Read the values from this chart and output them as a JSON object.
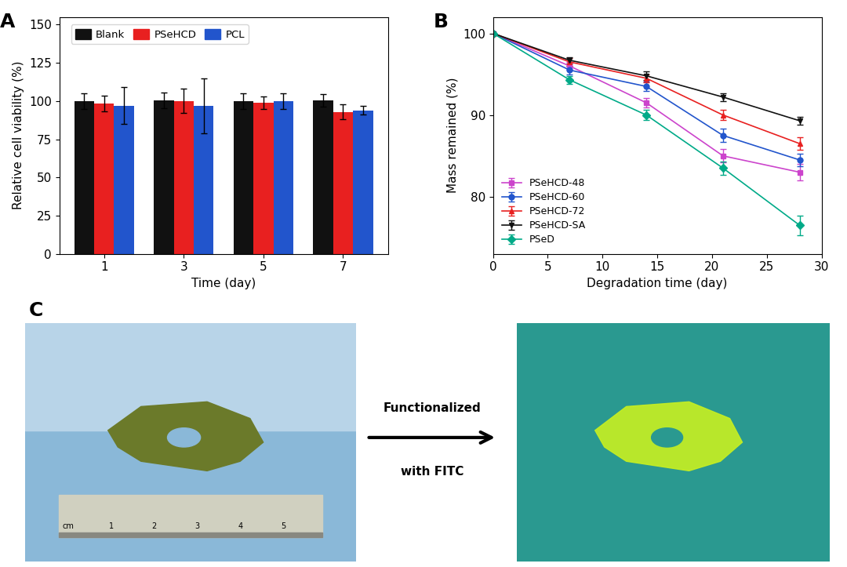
{
  "panel_A": {
    "label": "A",
    "time_days": [
      1,
      3,
      5,
      7
    ],
    "blank_mean": [
      100,
      100.5,
      100,
      100.3
    ],
    "blank_err": [
      5,
      5,
      5,
      4
    ],
    "PSeHCD_mean": [
      98.5,
      100,
      99,
      93
    ],
    "PSeHCD_err": [
      5,
      8,
      4,
      5
    ],
    "PCL_mean": [
      97,
      97,
      100,
      94
    ],
    "PCL_err": [
      12,
      18,
      5,
      3
    ],
    "colors": {
      "Blank": "#111111",
      "PSeHCD": "#e82020",
      "PCL": "#2255cc"
    },
    "ylabel": "Relative cell viability (%)",
    "xlabel": "Time (day)",
    "yticks": [
      0,
      25,
      50,
      75,
      100,
      125,
      150
    ],
    "ylim": [
      0,
      155
    ]
  },
  "panel_B": {
    "label": "B",
    "x": [
      0,
      7,
      14,
      21,
      28
    ],
    "PSeHCD48_y": [
      100,
      96.0,
      91.5,
      85.0,
      83.0
    ],
    "PSeHCD48_err": [
      0,
      0.5,
      0.6,
      0.8,
      1.0
    ],
    "PSeHCD60_y": [
      100,
      95.5,
      93.5,
      87.5,
      84.5
    ],
    "PSeHCD60_err": [
      0,
      0.5,
      0.6,
      0.8,
      0.8
    ],
    "PSeHCD72_y": [
      100,
      96.5,
      94.5,
      90.0,
      86.5
    ],
    "PSeHCD72_err": [
      0,
      0.5,
      0.5,
      0.6,
      0.8
    ],
    "PSeHCDSA_y": [
      100,
      96.7,
      94.8,
      92.2,
      89.3
    ],
    "PSeHCDSA_err": [
      0,
      0.4,
      0.5,
      0.5,
      0.5
    ],
    "PSeD_y": [
      100,
      94.3,
      90.0,
      83.5,
      76.5
    ],
    "PSeD_err": [
      0,
      0.5,
      0.6,
      0.8,
      1.2
    ],
    "colors": {
      "PSeHCD-48": "#cc44cc",
      "PSeHCD-60": "#2255cc",
      "PSeHCD-72": "#e82020",
      "PSeHCD-SA": "#111111",
      "PSeD": "#00aa88"
    },
    "markers": {
      "PSeHCD-48": "s",
      "PSeHCD-60": "o",
      "PSeHCD-72": "^",
      "PSeHCD-SA": "v",
      "PSeD": "D"
    },
    "ylabel": "Mass remained (%)",
    "xlabel": "Degradation time (day)",
    "yticks": [
      80,
      90,
      100
    ],
    "ylim": [
      73,
      102
    ],
    "xlim": [
      0,
      30
    ]
  },
  "panel_C": {
    "label": "C",
    "arrow_text_line1": "Functionalized",
    "arrow_text_line2": "with FITC",
    "bg_left_color": "#a8c8e8",
    "bg_right_color": "#3aada0"
  }
}
